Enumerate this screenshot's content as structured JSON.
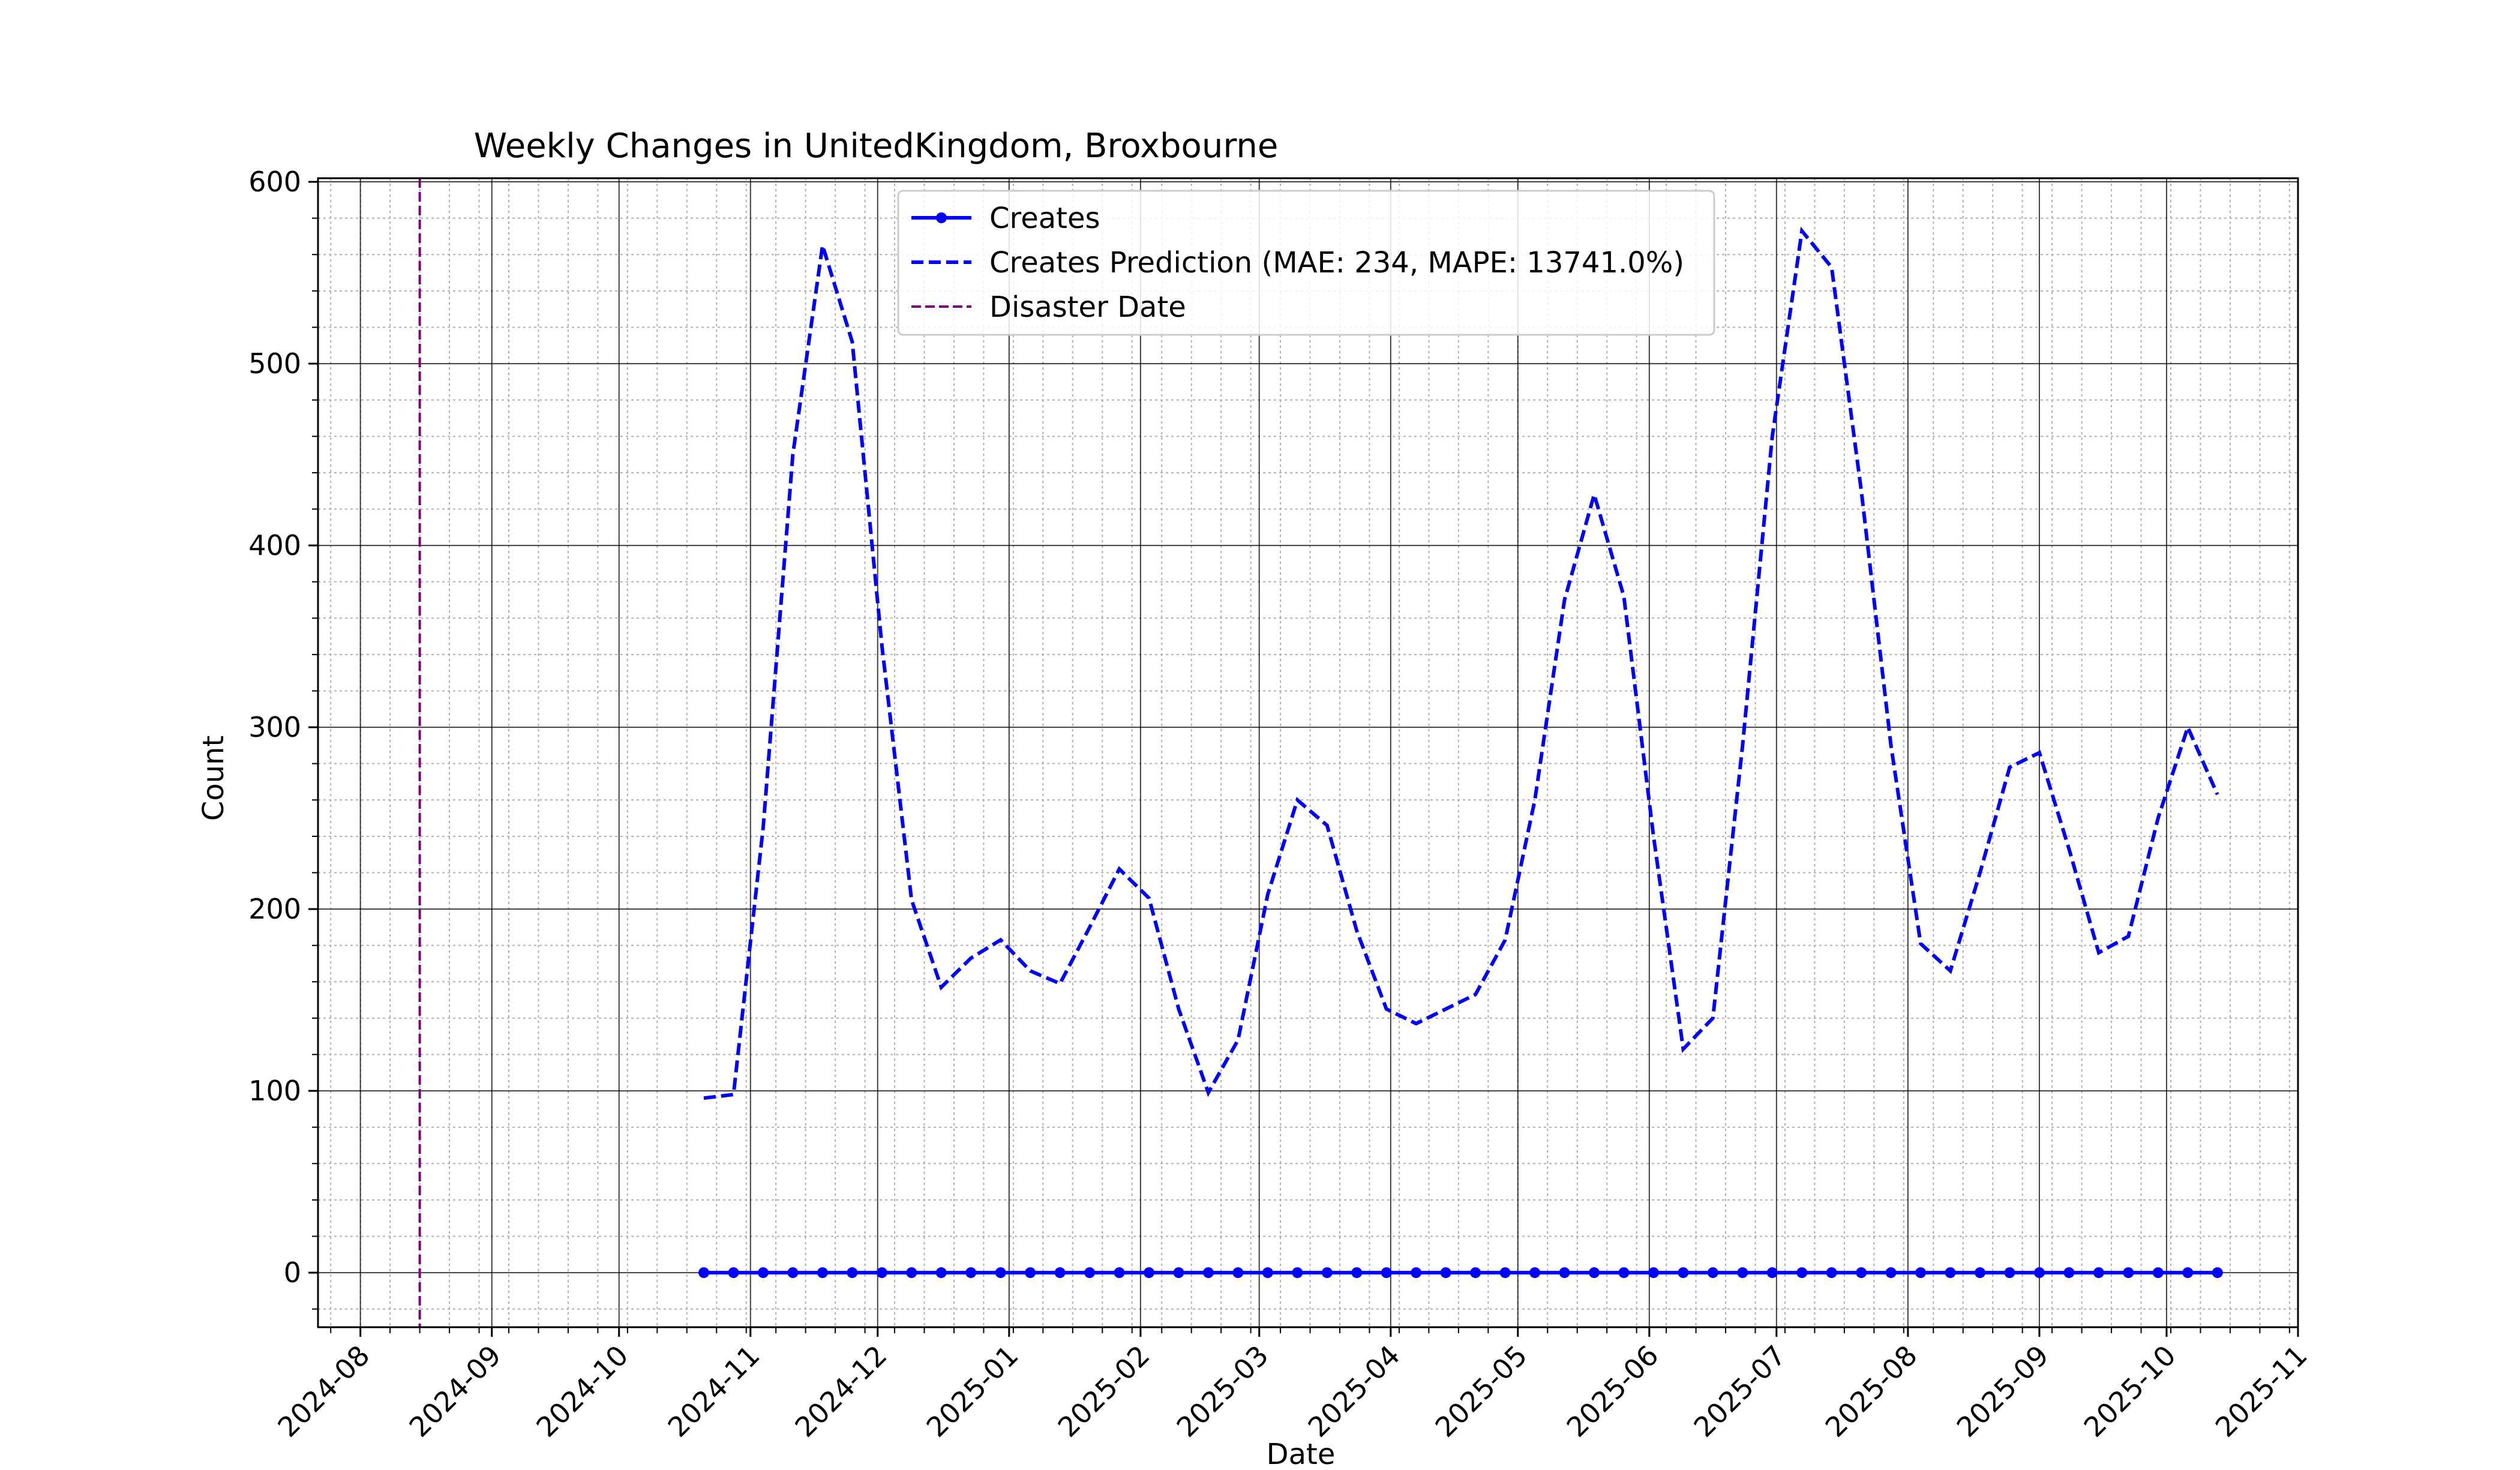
{
  "chart_data": {
    "type": "line",
    "title": "Weekly Changes in UnitedKingdom, Broxbourne",
    "xlabel": "Date",
    "ylabel": "Count",
    "ylim": [
      -30,
      602
    ],
    "xlim": [
      "2024-07-22",
      "2025-11-01"
    ],
    "yticks": [
      0,
      100,
      200,
      300,
      400,
      500,
      600
    ],
    "xticks": [
      "2024-08-01",
      "2024-09-01",
      "2024-10-01",
      "2024-11-01",
      "2024-12-01",
      "2025-01-01",
      "2025-02-01",
      "2025-03-01",
      "2025-04-01",
      "2025-05-01",
      "2025-06-01",
      "2025-07-01",
      "2025-08-01",
      "2025-09-01",
      "2025-10-01",
      "2025-11-01"
    ],
    "xtick_labels": [
      "2024-08",
      "2024-09",
      "2024-10",
      "2024-11",
      "2024-12",
      "2025-01",
      "2025-02",
      "2025-03",
      "2025-04",
      "2025-05",
      "2025-06",
      "2025-07",
      "2025-08",
      "2025-09",
      "2025-10",
      "2025-11"
    ],
    "grid": true,
    "legend_position": "upper center",
    "x": [
      "2024-10-21",
      "2024-10-28",
      "2024-11-04",
      "2024-11-11",
      "2024-11-18",
      "2024-11-25",
      "2024-12-02",
      "2024-12-09",
      "2024-12-16",
      "2024-12-23",
      "2024-12-30",
      "2025-01-06",
      "2025-01-13",
      "2025-01-20",
      "2025-01-27",
      "2025-02-03",
      "2025-02-10",
      "2025-02-17",
      "2025-02-24",
      "2025-03-03",
      "2025-03-10",
      "2025-03-17",
      "2025-03-24",
      "2025-03-31",
      "2025-04-07",
      "2025-04-14",
      "2025-04-21",
      "2025-04-28",
      "2025-05-05",
      "2025-05-12",
      "2025-05-19",
      "2025-05-26",
      "2025-06-02",
      "2025-06-09",
      "2025-06-16",
      "2025-06-23",
      "2025-06-30",
      "2025-07-07",
      "2025-07-14",
      "2025-07-21",
      "2025-07-28",
      "2025-08-04",
      "2025-08-11",
      "2025-08-18",
      "2025-08-25",
      "2025-09-01",
      "2025-09-08",
      "2025-09-15",
      "2025-09-22",
      "2025-09-29",
      "2025-10-06",
      "2025-10-13"
    ],
    "series": [
      {
        "name": "Creates",
        "style": "solid-markers",
        "color": "#0000ff",
        "values": [
          0,
          0,
          0,
          0,
          0,
          0,
          0,
          0,
          0,
          0,
          0,
          0,
          0,
          0,
          0,
          0,
          0,
          0,
          0,
          0,
          0,
          0,
          0,
          0,
          0,
          0,
          0,
          0,
          0,
          0,
          0,
          0,
          0,
          0,
          0,
          0,
          0,
          0,
          0,
          0,
          0,
          0,
          0,
          0,
          0,
          0,
          0,
          0,
          0,
          0,
          0,
          0
        ]
      },
      {
        "name": "Creates Prediction (MAE: 234, MAPE: 13741.0%)",
        "style": "dashed",
        "color": "#0000ff",
        "values": [
          96,
          98,
          245,
          450,
          565,
          512,
          345,
          205,
          157,
          173,
          183,
          166,
          159,
          190,
          222,
          206,
          145,
          99,
          128,
          208,
          260,
          246,
          188,
          145,
          137,
          145,
          153,
          183,
          260,
          370,
          428,
          372,
          240,
          123,
          140,
          290,
          460,
          573,
          553,
          430,
          290,
          181,
          166,
          220,
          278,
          286,
          233,
          176,
          185,
          250,
          300,
          263
        ]
      }
    ],
    "vlines": [
      {
        "name": "Disaster Date",
        "x": "2024-08-15",
        "color": "#800080",
        "style": "dashed"
      }
    ]
  }
}
